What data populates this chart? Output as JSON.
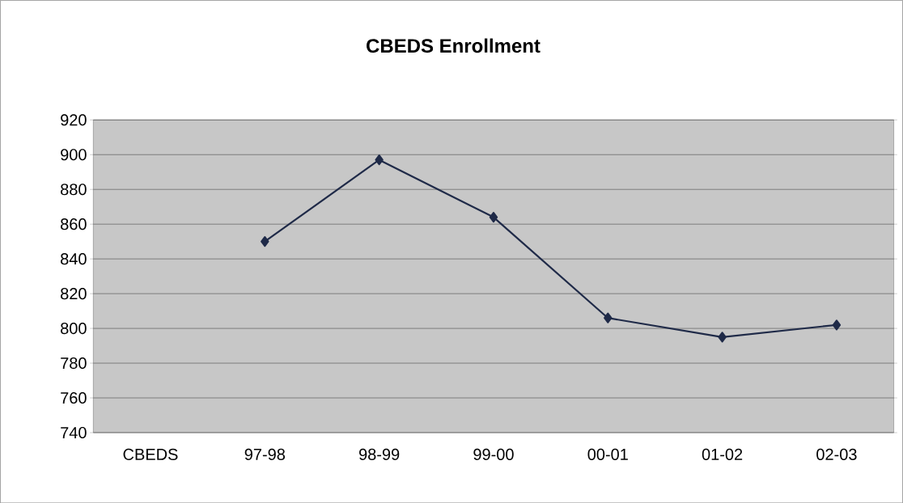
{
  "chart_data": {
    "type": "line",
    "title": "CBEDS Enrollment",
    "categories": [
      "CBEDS",
      "97-98",
      "98-99",
      "99-00",
      "00-01",
      "01-02",
      "02-03"
    ],
    "series": [
      {
        "color": "#1f2a48",
        "values": [
          null,
          850,
          897,
          864,
          806,
          795,
          802
        ]
      }
    ],
    "ylim": [
      740,
      920
    ],
    "yticks": [
      740,
      760,
      780,
      800,
      820,
      840,
      860,
      880,
      900,
      920
    ],
    "grid": "y",
    "marker": "diamond",
    "line_style": "solid"
  }
}
